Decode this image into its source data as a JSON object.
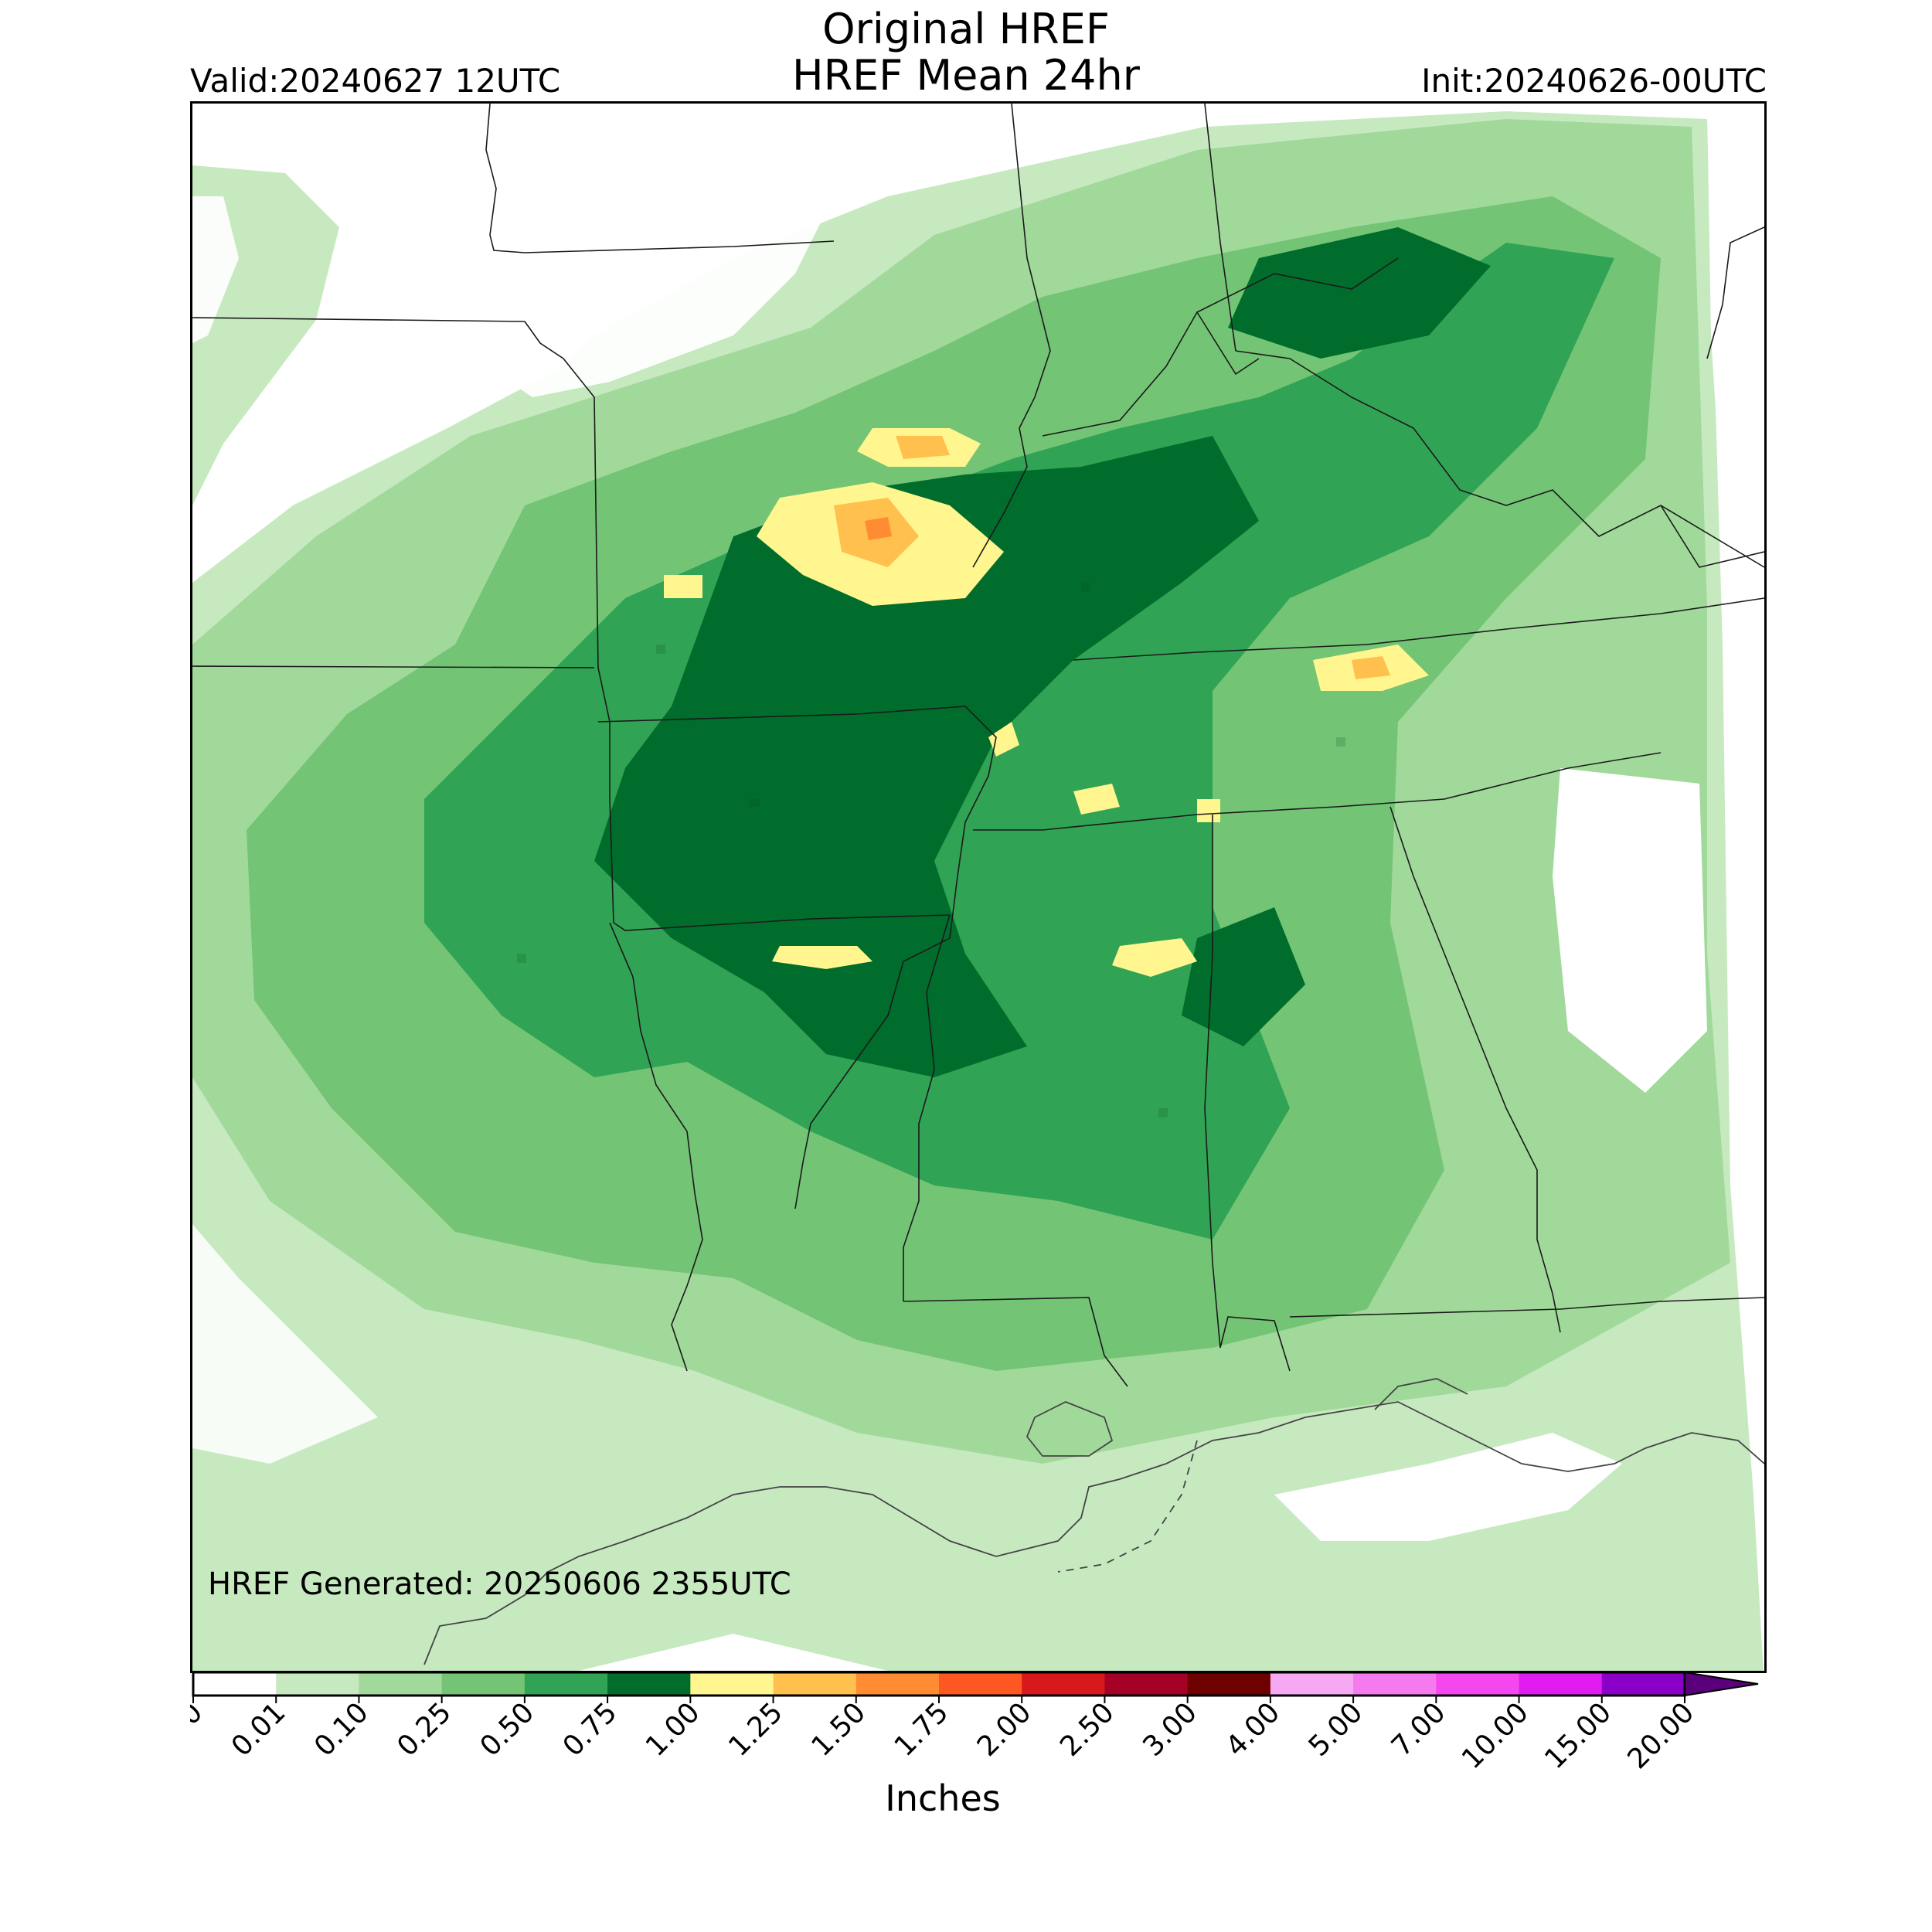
{
  "header": {
    "title_line1": "Original HREF",
    "title_line2": "HREF Mean 24hr",
    "valid": "Valid:20240627 12UTC",
    "init": "Init:20240626-00UTC"
  },
  "map": {
    "generated": "HREF Generated: 20250606 2355UTC",
    "precip_colors": {
      "trace": "#c7e9c0",
      "light": "#a1d99b",
      "moderate": "#74c476",
      "heavy": "#31a354",
      "very_heavy": "#006d2c",
      "one_inch": "#fff68f",
      "one_quarter": "#ffc04d",
      "one_half": "#ff8c33"
    }
  },
  "colorbar": {
    "label": "Inches",
    "ticks": [
      "0.00",
      "0.01",
      "0.10",
      "0.25",
      "0.50",
      "0.75",
      "1.00",
      "1.25",
      "1.50",
      "1.75",
      "2.00",
      "2.50",
      "3.00",
      "4.00",
      "5.00",
      "7.00",
      "10.00",
      "15.00",
      "20.00"
    ],
    "colors": [
      "#ffffff",
      "#c7e9c0",
      "#a1d99b",
      "#74c476",
      "#31a354",
      "#006d2c",
      "#fff68f",
      "#ffc04d",
      "#ff8c33",
      "#ff5722",
      "#d7191c",
      "#a50026",
      "#6e0000",
      "#f7a8f2",
      "#f57af0",
      "#f547ef",
      "#e01cf0",
      "#c10ce8",
      "#8b00c8"
    ],
    "extend_color": "#5a007a"
  }
}
